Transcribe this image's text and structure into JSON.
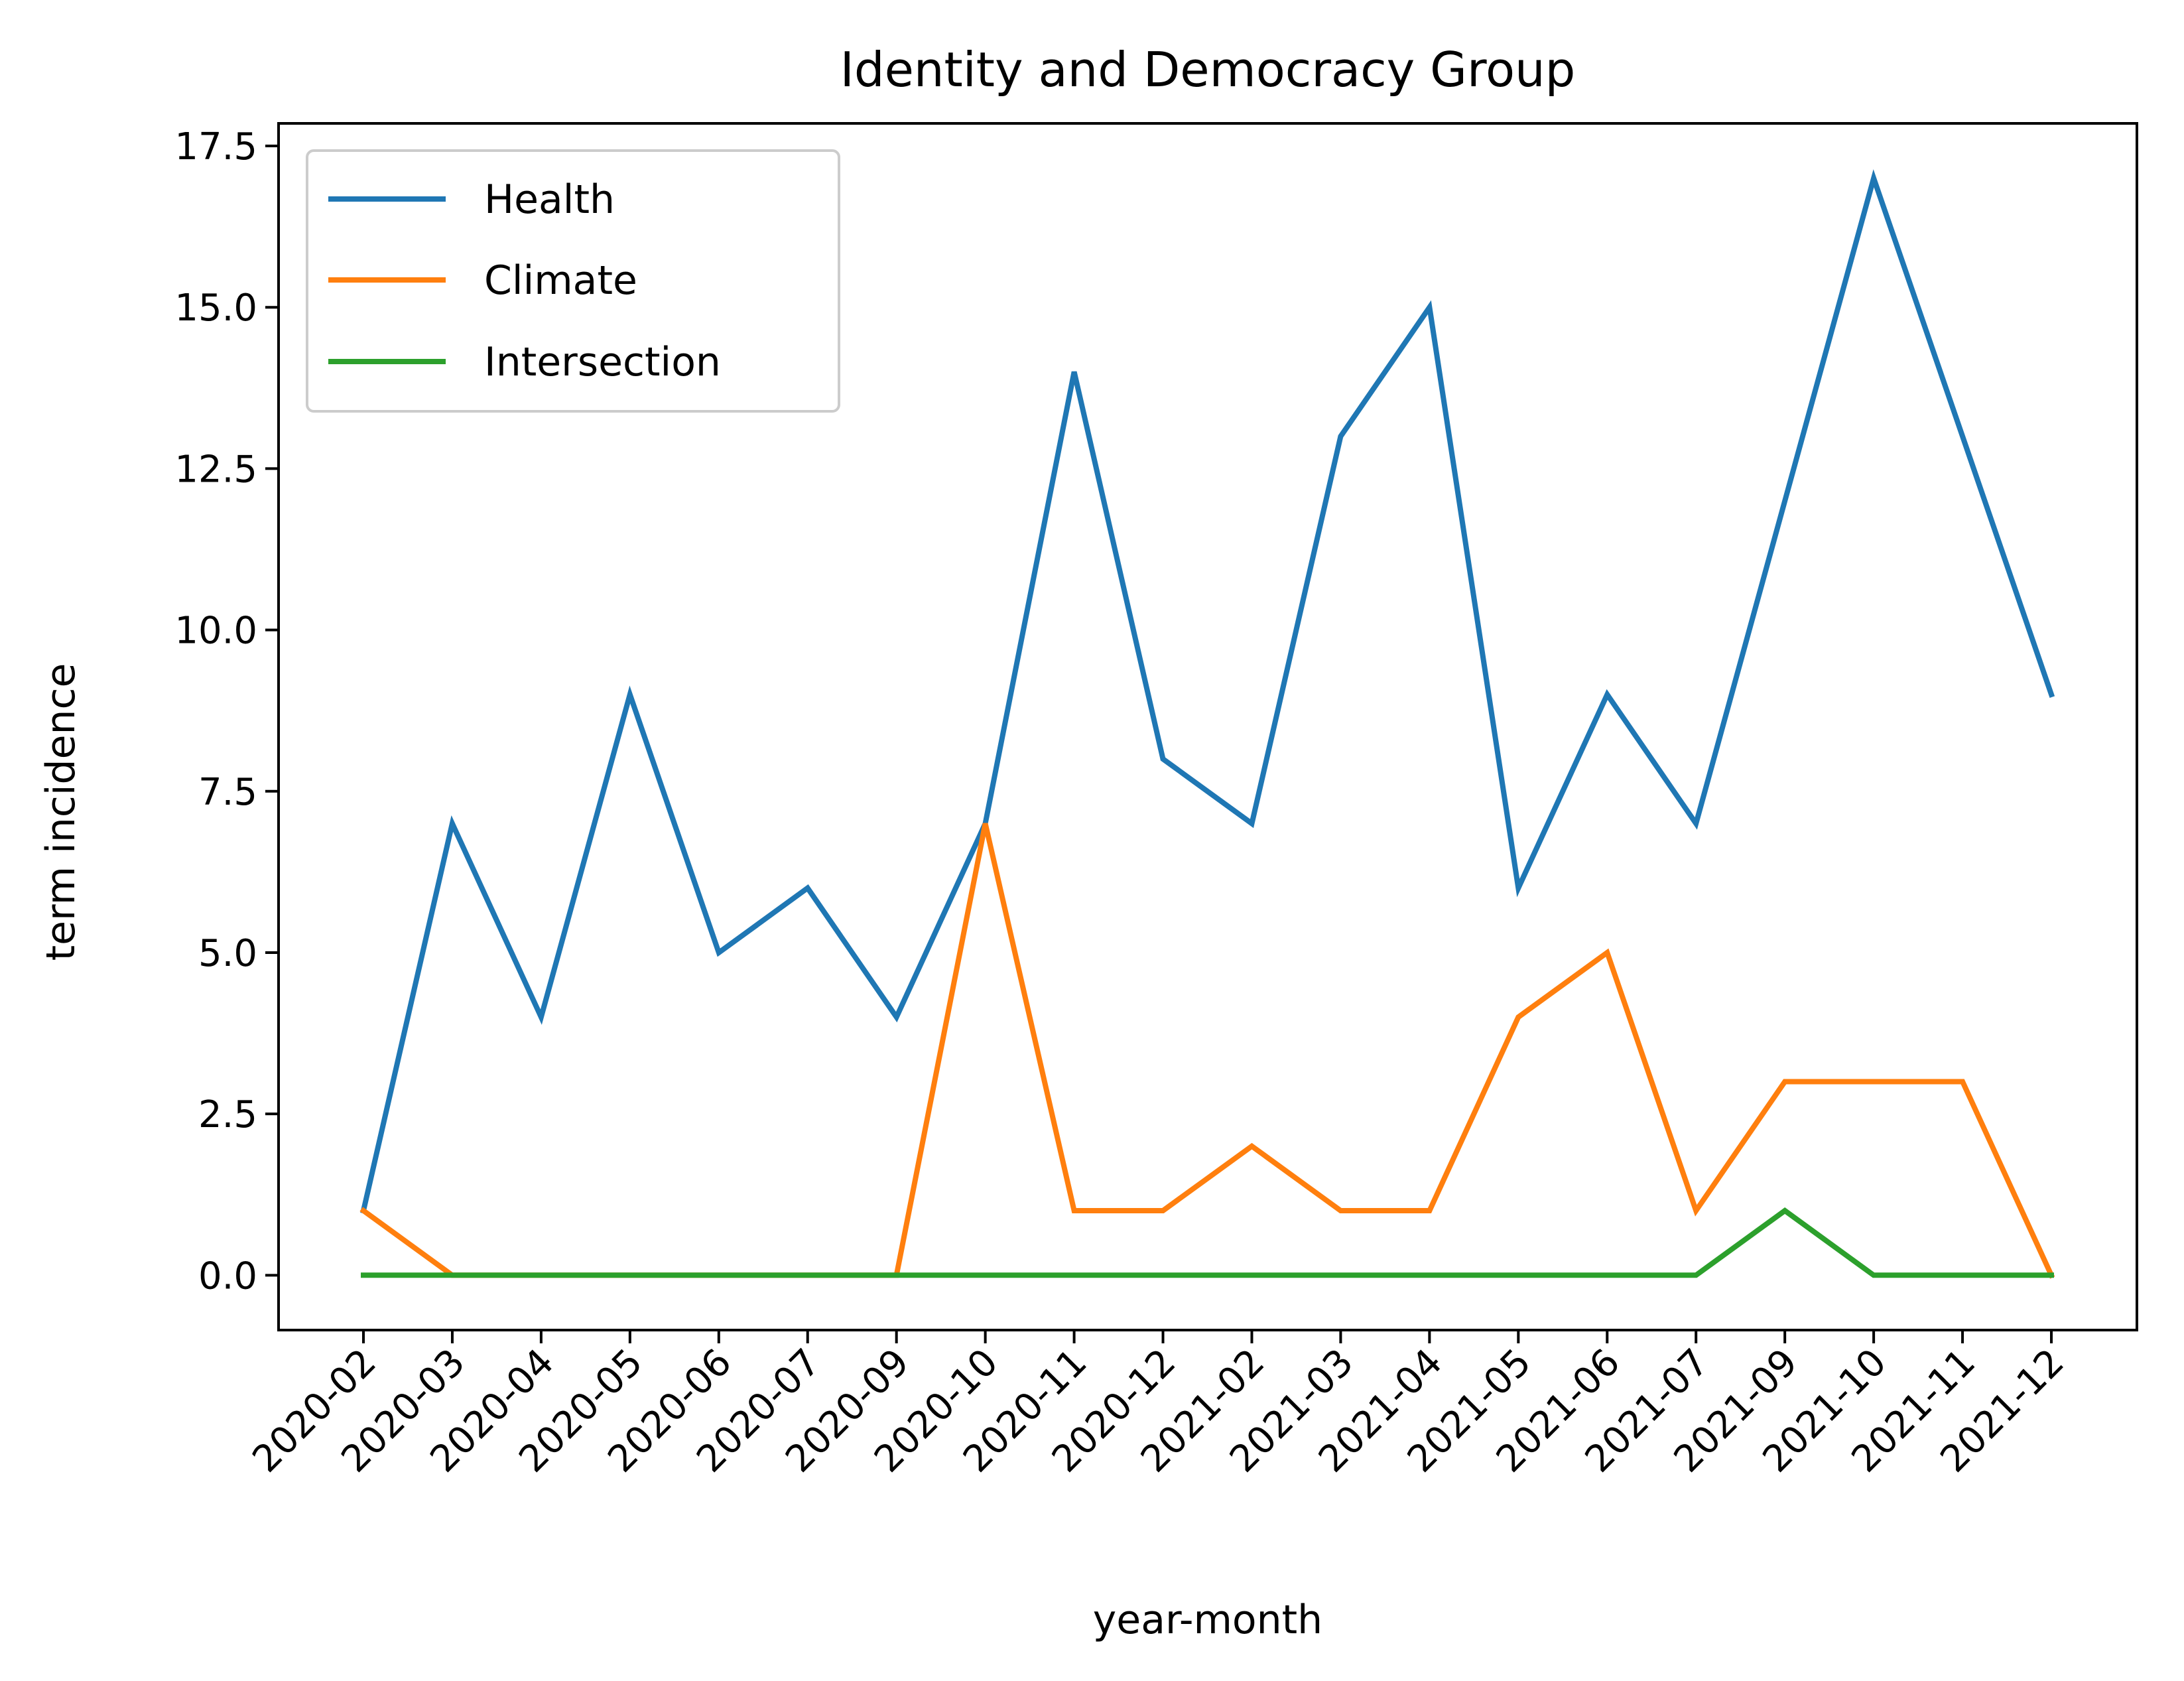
{
  "chart_data": {
    "type": "line",
    "title": "Identity and Democracy Group",
    "xlabel": "year-month",
    "ylabel": "term incidence",
    "categories": [
      "2020-02",
      "2020-03",
      "2020-04",
      "2020-05",
      "2020-06",
      "2020-07",
      "2020-09",
      "2020-10",
      "2020-11",
      "2020-12",
      "2021-02",
      "2021-03",
      "2021-04",
      "2021-05",
      "2021-06",
      "2021-07",
      "2021-09",
      "2021-10",
      "2021-11",
      "2021-12"
    ],
    "series": [
      {
        "name": "Health",
        "color": "#1f77b4",
        "values": [
          1,
          7,
          4,
          9,
          5,
          6,
          4,
          7,
          14,
          8,
          7,
          13,
          15,
          6,
          9,
          7,
          12,
          17,
          13,
          9
        ]
      },
      {
        "name": "Climate",
        "color": "#ff7f0e",
        "values": [
          1,
          0,
          0,
          0,
          0,
          0,
          0,
          7,
          1,
          1,
          2,
          1,
          1,
          4,
          5,
          1,
          3,
          3,
          3,
          0
        ]
      },
      {
        "name": "Intersection",
        "color": "#2ca02c",
        "values": [
          0,
          0,
          0,
          0,
          0,
          0,
          0,
          0,
          0,
          0,
          0,
          0,
          0,
          0,
          0,
          0,
          1,
          0,
          0,
          0
        ]
      }
    ],
    "ylim": [
      -0.85,
      17.85
    ],
    "yticks": [
      "0.0",
      "2.5",
      "5.0",
      "7.5",
      "10.0",
      "12.5",
      "15.0",
      "17.5"
    ],
    "grid": false,
    "legend": "upper-left"
  }
}
